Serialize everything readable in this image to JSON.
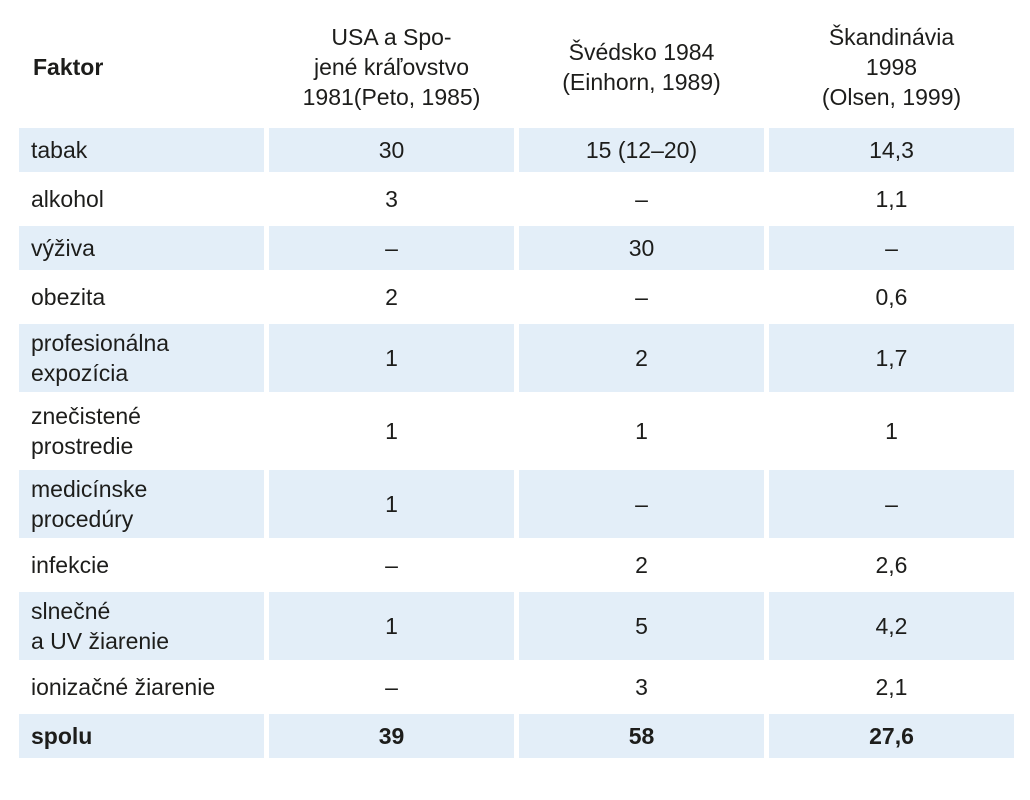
{
  "table": {
    "headers": [
      {
        "lines": [
          "Faktor"
        ]
      },
      {
        "lines": [
          "USA a Spo-",
          "jené kráľovstvo",
          "1981(Peto, 1985)"
        ]
      },
      {
        "lines": [
          "Švédsko 1984",
          "(Einhorn, 1989)"
        ]
      },
      {
        "lines": [
          "Škandinávia",
          "1998",
          "(Olsen, 1999)"
        ]
      }
    ],
    "rows": [
      {
        "factor": [
          "tabak"
        ],
        "usa_uk": "30",
        "sweden": "15 (12–20)",
        "scandinavia": "14,3"
      },
      {
        "factor": [
          "alkohol"
        ],
        "usa_uk": "3",
        "sweden": "–",
        "scandinavia": "1,1"
      },
      {
        "factor": [
          "výživa"
        ],
        "usa_uk": "–",
        "sweden": "30",
        "scandinavia": "–"
      },
      {
        "factor": [
          "obezita"
        ],
        "usa_uk": "2",
        "sweden": "–",
        "scandinavia": "0,6"
      },
      {
        "factor": [
          "profesionálna",
          "expozícia"
        ],
        "usa_uk": "1",
        "sweden": "2",
        "scandinavia": "1,7"
      },
      {
        "factor": [
          "znečistené",
          "prostredie"
        ],
        "usa_uk": "1",
        "sweden": "1",
        "scandinavia": "1"
      },
      {
        "factor": [
          "medicínske",
          "procedúry"
        ],
        "usa_uk": "1",
        "sweden": "–",
        "scandinavia": "–"
      },
      {
        "factor": [
          "infekcie"
        ],
        "usa_uk": "–",
        "sweden": "2",
        "scandinavia": "2,6"
      },
      {
        "factor": [
          "slnečné",
          "a UV žiarenie"
        ],
        "usa_uk": "1",
        "sweden": "5",
        "scandinavia": "4,2"
      },
      {
        "factor": [
          "ionizačné žiarenie"
        ],
        "usa_uk": "–",
        "sweden": "3",
        "scandinavia": "2,1"
      }
    ],
    "total": {
      "factor": "spolu",
      "usa_uk": "39",
      "sweden": "58",
      "scandinavia": "27,6"
    }
  }
}
